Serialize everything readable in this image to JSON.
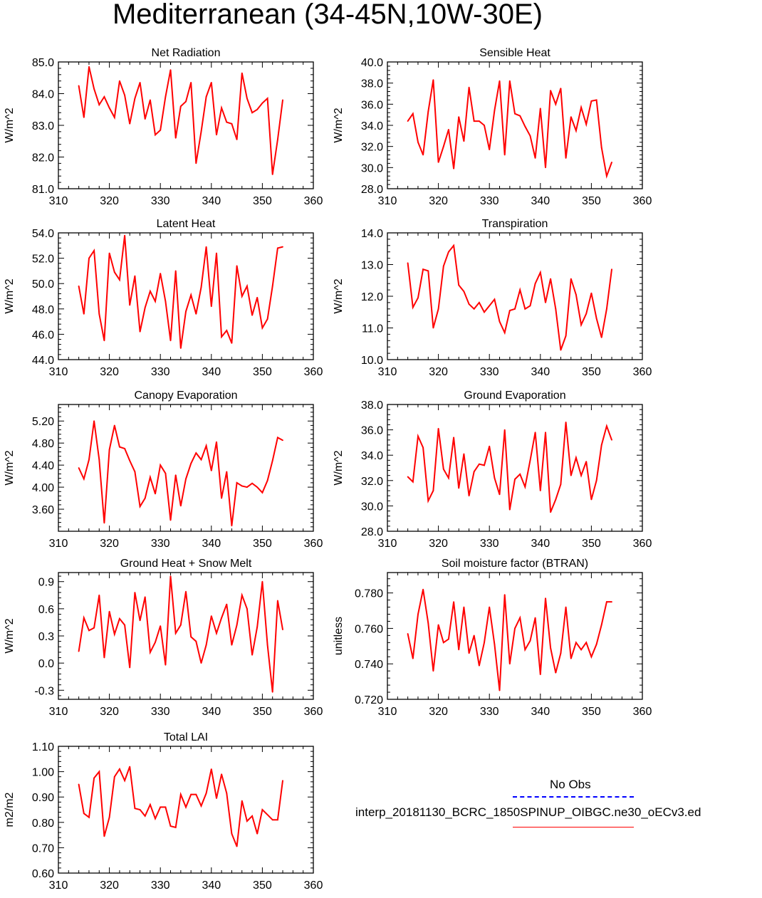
{
  "title": "Mediterranean (34-45N,10W-30E)",
  "colors": {
    "series": "#ff0000",
    "obs": "#0000ff",
    "axis": "#000000"
  },
  "legend": {
    "obs_label": "No Obs",
    "run_label": "interp_20181130_BCRC_1850SPINUP_OIBGC.ne30_oECv3.ed"
  },
  "chart_data": [
    {
      "type": "line",
      "title": "Net Radiation",
      "ylabel": "W/m^2",
      "xlim": [
        310,
        360
      ],
      "ylim": [
        81.0,
        85.0
      ],
      "xticks": [
        310,
        320,
        330,
        340,
        350,
        360
      ],
      "yticks": [
        81.0,
        82.0,
        83.0,
        84.0,
        85.0
      ],
      "ytick_decimals": 1,
      "x": [
        314,
        315,
        316,
        317,
        318,
        319,
        320,
        321,
        322,
        323,
        324,
        325,
        326,
        327,
        328,
        329,
        330,
        331,
        332,
        333,
        334,
        335,
        336,
        337,
        338,
        339,
        340,
        341,
        342,
        343,
        344,
        345,
        346,
        347,
        348,
        349,
        350,
        351,
        352,
        353,
        354
      ],
      "values": [
        84.25,
        83.25,
        84.85,
        84.15,
        83.65,
        83.9,
        83.55,
        83.25,
        84.4,
        83.95,
        83.05,
        83.85,
        84.35,
        83.2,
        83.8,
        82.7,
        82.85,
        83.9,
        84.75,
        82.6,
        83.6,
        83.75,
        84.35,
        81.8,
        82.8,
        83.9,
        84.35,
        82.7,
        83.55,
        83.1,
        83.05,
        82.55,
        84.65,
        83.85,
        83.4,
        83.5,
        83.7,
        83.85,
        81.45,
        82.55,
        83.8
      ],
      "series_name": "interp_20181130_BCRC_1850SPINUP_OIBGC.ne30_oECv3.ed"
    },
    {
      "type": "line",
      "title": "Sensible Heat",
      "ylabel": "W/m^2",
      "xlim": [
        310,
        360
      ],
      "ylim": [
        28.0,
        40.0
      ],
      "xticks": [
        310,
        320,
        330,
        340,
        350,
        360
      ],
      "yticks": [
        28.0,
        30.0,
        32.0,
        34.0,
        36.0,
        38.0,
        40.0
      ],
      "ytick_decimals": 1,
      "x": [
        314,
        315,
        316,
        317,
        318,
        319,
        320,
        321,
        322,
        323,
        324,
        325,
        326,
        327,
        328,
        329,
        330,
        331,
        332,
        333,
        334,
        335,
        336,
        337,
        338,
        339,
        340,
        341,
        342,
        343,
        344,
        345,
        346,
        347,
        348,
        349,
        350,
        351,
        352,
        353,
        354
      ],
      "values": [
        34.4,
        35.1,
        32.4,
        31.2,
        35.3,
        38.3,
        30.5,
        32.0,
        33.6,
        29.9,
        34.8,
        32.5,
        37.6,
        34.4,
        34.4,
        34.0,
        31.7,
        35.4,
        38.2,
        31.2,
        38.2,
        35.1,
        34.9,
        33.9,
        33.0,
        30.9,
        35.6,
        30.0,
        37.3,
        36.0,
        37.5,
        30.9,
        34.8,
        33.5,
        35.7,
        34.1,
        36.3,
        36.4,
        31.9,
        29.2,
        30.5
      ],
      "series_name": "interp_20181130_BCRC_1850SPINUP_OIBGC.ne30_oECv3.ed"
    },
    {
      "type": "line",
      "title": "Latent Heat",
      "ylabel": "W/m^2",
      "xlim": [
        310,
        360
      ],
      "ylim": [
        44.0,
        54.0
      ],
      "xticks": [
        310,
        320,
        330,
        340,
        350,
        360
      ],
      "yticks": [
        44.0,
        46.0,
        48.0,
        50.0,
        52.0,
        54.0
      ],
      "ytick_decimals": 1,
      "x": [
        314,
        315,
        316,
        317,
        318,
        319,
        320,
        321,
        322,
        323,
        324,
        325,
        326,
        327,
        328,
        329,
        330,
        331,
        332,
        333,
        334,
        335,
        336,
        337,
        338,
        339,
        340,
        341,
        342,
        343,
        344,
        345,
        346,
        347,
        348,
        349,
        350,
        351,
        352,
        353,
        354
      ],
      "values": [
        49.8,
        47.6,
        52.0,
        52.6,
        47.6,
        45.5,
        52.4,
        50.9,
        50.3,
        53.8,
        48.3,
        50.6,
        46.2,
        48.1,
        49.4,
        48.6,
        50.8,
        48.6,
        45.5,
        51.0,
        44.9,
        47.8,
        49.1,
        47.6,
        49.7,
        52.9,
        48.2,
        52.4,
        45.8,
        46.3,
        45.3,
        51.4,
        49.0,
        49.8,
        47.5,
        48.9,
        46.5,
        47.2,
        49.8,
        52.8,
        52.9
      ],
      "series_name": "interp_20181130_BCRC_1850SPINUP_OIBGC.ne30_oECv3.ed"
    },
    {
      "type": "line",
      "title": "Transpiration",
      "ylabel": "W/m^2",
      "xlim": [
        310,
        360
      ],
      "ylim": [
        10.0,
        14.0
      ],
      "xticks": [
        310,
        320,
        330,
        340,
        350,
        360
      ],
      "yticks": [
        10.0,
        11.0,
        12.0,
        13.0,
        14.0
      ],
      "ytick_decimals": 1,
      "x": [
        314,
        315,
        316,
        317,
        318,
        319,
        320,
        321,
        322,
        323,
        324,
        325,
        326,
        327,
        328,
        329,
        330,
        331,
        332,
        333,
        334,
        335,
        336,
        337,
        338,
        339,
        340,
        341,
        342,
        343,
        344,
        345,
        346,
        347,
        348,
        349,
        350,
        351,
        352,
        353,
        354
      ],
      "values": [
        13.05,
        11.65,
        11.95,
        12.85,
        12.8,
        11.0,
        11.6,
        12.95,
        13.4,
        13.6,
        12.35,
        12.15,
        11.75,
        11.6,
        11.8,
        11.5,
        11.7,
        11.9,
        11.2,
        10.85,
        11.55,
        11.6,
        12.2,
        11.6,
        11.7,
        12.4,
        12.75,
        11.8,
        12.55,
        11.6,
        10.3,
        10.75,
        12.55,
        12.05,
        11.1,
        11.45,
        12.1,
        11.3,
        10.7,
        11.6,
        12.85
      ],
      "series_name": "interp_20181130_BCRC_1850SPINUP_OIBGC.ne30_oECv3.ed"
    },
    {
      "type": "line",
      "title": "Canopy Evaporation",
      "ylabel": "W/m^2",
      "xlim": [
        310,
        360
      ],
      "ylim": [
        3.2,
        5.5
      ],
      "xticks": [
        310,
        320,
        330,
        340,
        350,
        360
      ],
      "yticks": [
        3.6,
        4.0,
        4.4,
        4.8,
        5.2
      ],
      "ytick_decimals": 2,
      "x": [
        314,
        315,
        316,
        317,
        318,
        319,
        320,
        321,
        322,
        323,
        324,
        325,
        326,
        327,
        328,
        329,
        330,
        331,
        332,
        333,
        334,
        335,
        336,
        337,
        338,
        339,
        340,
        341,
        342,
        343,
        344,
        345,
        346,
        347,
        348,
        349,
        350,
        351,
        352,
        353,
        354
      ],
      "values": [
        4.35,
        4.15,
        4.5,
        5.2,
        4.5,
        3.35,
        4.68,
        5.12,
        4.73,
        4.7,
        4.48,
        4.28,
        3.65,
        3.8,
        4.18,
        3.88,
        4.4,
        4.25,
        3.4,
        4.22,
        3.66,
        4.15,
        4.43,
        4.62,
        4.5,
        4.75,
        4.3,
        4.82,
        3.8,
        4.28,
        3.3,
        4.08,
        4.02,
        4.0,
        4.07,
        4.0,
        3.9,
        4.12,
        4.48,
        4.9,
        4.85
      ],
      "series_name": "interp_20181130_BCRC_1850SPINUP_OIBGC.ne30_oECv3.ed"
    },
    {
      "type": "line",
      "title": "Ground Evaporation",
      "ylabel": "W/m^2",
      "xlim": [
        310,
        360
      ],
      "ylim": [
        28.0,
        38.0
      ],
      "xticks": [
        310,
        320,
        330,
        340,
        350,
        360
      ],
      "yticks": [
        28.0,
        30.0,
        32.0,
        34.0,
        36.0,
        38.0
      ],
      "ytick_decimals": 1,
      "x": [
        314,
        315,
        316,
        317,
        318,
        319,
        320,
        321,
        322,
        323,
        324,
        325,
        326,
        327,
        328,
        329,
        330,
        331,
        332,
        333,
        334,
        335,
        336,
        337,
        338,
        339,
        340,
        341,
        342,
        343,
        344,
        345,
        346,
        347,
        348,
        349,
        350,
        351,
        352,
        353,
        354
      ],
      "values": [
        32.3,
        31.9,
        35.5,
        34.6,
        30.4,
        31.2,
        36.1,
        32.9,
        32.2,
        35.4,
        31.4,
        34.1,
        30.8,
        32.7,
        33.3,
        33.2,
        34.7,
        32.2,
        30.9,
        36.0,
        29.7,
        32.1,
        32.5,
        31.5,
        33.6,
        35.8,
        31.2,
        35.8,
        29.5,
        30.5,
        31.7,
        36.6,
        32.4,
        33.8,
        32.4,
        33.5,
        30.5,
        32.0,
        34.8,
        36.3,
        35.2
      ],
      "series_name": "interp_20181130_BCRC_1850SPINUP_OIBGC.ne30_oECv3.ed"
    },
    {
      "type": "line",
      "title": "Ground Heat + Snow Melt",
      "ylabel": "W/m^2",
      "xlim": [
        310,
        360
      ],
      "ylim": [
        -0.4,
        1.0
      ],
      "xticks": [
        310,
        320,
        330,
        340,
        350,
        360
      ],
      "yticks": [
        -0.3,
        0.0,
        0.3,
        0.6,
        0.9
      ],
      "ytick_decimals": 1,
      "x": [
        314,
        315,
        316,
        317,
        318,
        319,
        320,
        321,
        322,
        323,
        324,
        325,
        326,
        327,
        328,
        329,
        330,
        331,
        332,
        333,
        334,
        335,
        336,
        337,
        338,
        339,
        340,
        341,
        342,
        343,
        344,
        345,
        346,
        347,
        348,
        349,
        350,
        351,
        352,
        353,
        354
      ],
      "values": [
        0.13,
        0.5,
        0.36,
        0.39,
        0.75,
        0.06,
        0.57,
        0.32,
        0.49,
        0.42,
        -0.05,
        0.78,
        0.47,
        0.73,
        0.12,
        0.23,
        0.41,
        -0.02,
        0.96,
        0.33,
        0.42,
        0.79,
        0.29,
        0.24,
        0.0,
        0.2,
        0.52,
        0.33,
        0.5,
        0.65,
        0.2,
        0.42,
        0.75,
        0.6,
        0.09,
        0.4,
        0.9,
        0.2,
        -0.32,
        0.69,
        0.37
      ],
      "series_name": "interp_20181130_BCRC_1850SPINUP_OIBGC.ne30_oECv3.ed"
    },
    {
      "type": "line",
      "title": "Soil moisture factor (BTRAN)",
      "ylabel": "unitless",
      "xlim": [
        310,
        360
      ],
      "ylim": [
        0.72,
        0.7915
      ],
      "xticks": [
        310,
        320,
        330,
        340,
        350,
        360
      ],
      "yticks": [
        0.72,
        0.74,
        0.76,
        0.78
      ],
      "ytick_decimals": 3,
      "x": [
        314,
        315,
        316,
        317,
        318,
        319,
        320,
        321,
        322,
        323,
        324,
        325,
        326,
        327,
        328,
        329,
        330,
        331,
        332,
        333,
        334,
        335,
        336,
        337,
        338,
        339,
        340,
        341,
        342,
        343,
        344,
        345,
        346,
        347,
        348,
        349,
        350,
        351,
        352,
        353,
        354
      ],
      "values": [
        0.757,
        0.743,
        0.768,
        0.782,
        0.763,
        0.736,
        0.762,
        0.752,
        0.754,
        0.775,
        0.748,
        0.772,
        0.746,
        0.756,
        0.739,
        0.752,
        0.772,
        0.751,
        0.725,
        0.779,
        0.74,
        0.76,
        0.766,
        0.748,
        0.753,
        0.766,
        0.734,
        0.777,
        0.749,
        0.735,
        0.746,
        0.772,
        0.743,
        0.752,
        0.748,
        0.752,
        0.744,
        0.751,
        0.762,
        0.775,
        0.775
      ],
      "series_name": "interp_20181130_BCRC_1850SPINUP_OIBGC.ne30_oECv3.ed"
    },
    {
      "type": "line",
      "title": "Total LAI",
      "ylabel": "m2/m2",
      "xlim": [
        310,
        360
      ],
      "ylim": [
        0.6,
        1.1
      ],
      "xticks": [
        310,
        320,
        330,
        340,
        350,
        360
      ],
      "yticks": [
        0.6,
        0.7,
        0.8,
        0.9,
        1.0,
        1.1
      ],
      "ytick_decimals": 2,
      "x": [
        314,
        315,
        316,
        317,
        318,
        319,
        320,
        321,
        322,
        323,
        324,
        325,
        326,
        327,
        328,
        329,
        330,
        331,
        332,
        333,
        334,
        335,
        336,
        337,
        338,
        339,
        340,
        341,
        342,
        343,
        344,
        345,
        346,
        347,
        348,
        349,
        350,
        351,
        352,
        353,
        354
      ],
      "values": [
        0.95,
        0.835,
        0.82,
        0.975,
        1.0,
        0.745,
        0.82,
        0.98,
        1.01,
        0.965,
        1.02,
        0.855,
        0.85,
        0.825,
        0.87,
        0.815,
        0.86,
        0.86,
        0.785,
        0.78,
        0.91,
        0.86,
        0.91,
        0.91,
        0.865,
        0.915,
        1.01,
        0.895,
        0.99,
        0.915,
        0.755,
        0.705,
        0.885,
        0.805,
        0.825,
        0.755,
        0.85,
        0.83,
        0.81,
        0.81,
        0.965
      ],
      "series_name": "interp_20181130_BCRC_1850SPINUP_OIBGC.ne30_oECv3.ed"
    }
  ]
}
